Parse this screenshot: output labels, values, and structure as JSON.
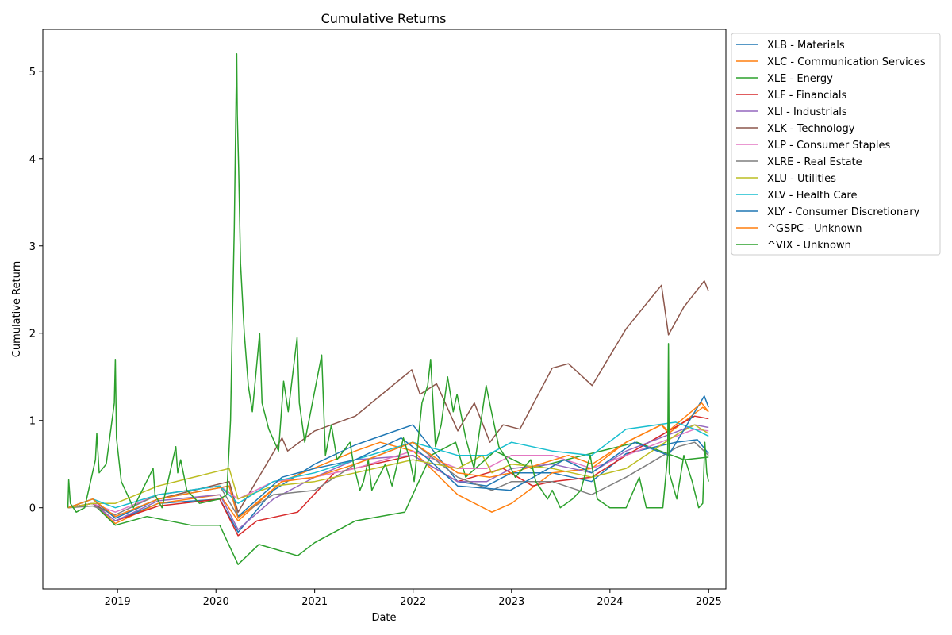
{
  "chart_data": {
    "type": "line",
    "title": "Cumulative Returns",
    "xlabel": "Date",
    "ylabel": "Cumulative Return",
    "xlim": [
      "2018-03-30",
      "2025-03-06"
    ],
    "ylim": [
      -0.93,
      5.48
    ],
    "xticks": [
      {
        "value": "2019-01-01",
        "label": "2019"
      },
      {
        "value": "2020-01-01",
        "label": "2020"
      },
      {
        "value": "2021-01-01",
        "label": "2021"
      },
      {
        "value": "2022-01-01",
        "label": "2022"
      },
      {
        "value": "2023-01-01",
        "label": "2023"
      },
      {
        "value": "2024-01-01",
        "label": "2024"
      },
      {
        "value": "2025-01-01",
        "label": "2025"
      }
    ],
    "yticks": [
      0,
      1,
      2,
      3,
      4,
      5
    ],
    "grid": false,
    "legend_position": "outside-upper-right",
    "series": [
      {
        "name": "XLB - Materials",
        "color": "#1f77b4",
        "x": [
          "2018-07-01",
          "2018-10-01",
          "2018-12-24",
          "2019-06-01",
          "2020-01-15",
          "2020-03-23",
          "2020-08-01",
          "2021-01-01",
          "2021-06-01",
          "2021-12-31",
          "2022-06-15",
          "2022-10-01",
          "2023-01-01",
          "2023-06-01",
          "2023-10-25",
          "2024-03-01",
          "2024-09-01",
          "2024-11-20",
          "2025-01-01"
        ],
        "y": [
          0.0,
          0.05,
          -0.15,
          0.05,
          0.1,
          -0.28,
          0.2,
          0.5,
          0.72,
          0.95,
          0.3,
          0.25,
          0.4,
          0.4,
          0.3,
          0.62,
          0.75,
          0.78,
          0.62
        ]
      },
      {
        "name": "XLC - Communication Services",
        "color": "#ff7f0e",
        "x": [
          "2018-07-01",
          "2018-10-01",
          "2018-12-24",
          "2019-06-01",
          "2020-01-15",
          "2020-03-23",
          "2020-09-01",
          "2021-06-01",
          "2021-09-01",
          "2022-01-01",
          "2022-06-15",
          "2022-10-20",
          "2023-01-01",
          "2023-06-01",
          "2023-10-25",
          "2024-03-01",
          "2024-07-10",
          "2024-08-05",
          "2024-12-10",
          "2025-01-01"
        ],
        "y": [
          0.0,
          0.05,
          -0.18,
          0.05,
          0.15,
          -0.15,
          0.3,
          0.65,
          0.75,
          0.65,
          0.15,
          -0.05,
          0.05,
          0.4,
          0.45,
          0.75,
          0.95,
          0.85,
          1.15,
          1.1
        ]
      },
      {
        "name": "XLE - Energy",
        "color": "#2ca02c",
        "x": [
          "2018-07-01",
          "2018-10-01",
          "2018-12-24",
          "2019-04-20",
          "2019-10-01",
          "2020-01-15",
          "2020-03-23",
          "2020-06-08",
          "2020-10-30",
          "2021-01-01",
          "2021-06-01",
          "2021-12-01",
          "2022-03-08",
          "2022-06-08",
          "2022-07-15",
          "2022-11-01",
          "2023-03-15",
          "2023-09-25",
          "2024-04-10",
          "2024-10-01",
          "2025-01-01"
        ],
        "y": [
          0.0,
          0.05,
          -0.2,
          -0.1,
          -0.2,
          -0.2,
          -0.65,
          -0.42,
          -0.55,
          -0.4,
          -0.15,
          -0.05,
          0.6,
          0.75,
          0.35,
          0.65,
          0.45,
          0.6,
          0.75,
          0.55,
          0.58
        ]
      },
      {
        "name": "XLF - Financials",
        "color": "#d62728",
        "x": [
          "2018-07-01",
          "2018-10-01",
          "2018-12-24",
          "2019-06-01",
          "2020-01-15",
          "2020-03-23",
          "2020-06-01",
          "2020-10-30",
          "2021-03-15",
          "2021-12-31",
          "2022-06-15",
          "2022-12-01",
          "2023-03-20",
          "2023-06-01",
          "2023-10-25",
          "2024-03-01",
          "2024-11-10",
          "2025-01-01"
        ],
        "y": [
          0.0,
          0.05,
          -0.15,
          0.02,
          0.1,
          -0.32,
          -0.15,
          -0.05,
          0.4,
          0.6,
          0.3,
          0.45,
          0.25,
          0.3,
          0.35,
          0.6,
          1.05,
          1.02
        ]
      },
      {
        "name": "XLI - Industrials",
        "color": "#9467bd",
        "x": [
          "2018-07-01",
          "2018-10-01",
          "2018-12-24",
          "2019-06-01",
          "2020-01-15",
          "2020-03-23",
          "2020-08-01",
          "2021-01-01",
          "2021-06-01",
          "2021-12-31",
          "2022-06-15",
          "2022-10-01",
          "2023-01-01",
          "2023-06-01",
          "2023-10-25",
          "2024-03-01",
          "2024-11-10",
          "2025-01-01"
        ],
        "y": [
          0.0,
          0.05,
          -0.15,
          0.08,
          0.15,
          -0.25,
          0.1,
          0.35,
          0.55,
          0.6,
          0.3,
          0.3,
          0.45,
          0.5,
          0.4,
          0.65,
          0.95,
          0.92
        ]
      },
      {
        "name": "XLK - Technology",
        "color": "#8c564b",
        "x": [
          "2018-07-01",
          "2018-10-01",
          "2018-12-24",
          "2019-06-01",
          "2020-02-19",
          "2020-03-23",
          "2020-09-02",
          "2020-09-23",
          "2021-01-01",
          "2021-06-01",
          "2021-12-27",
          "2022-01-27",
          "2022-03-29",
          "2022-06-16",
          "2022-08-16",
          "2022-10-13",
          "2022-12-01",
          "2023-02-01",
          "2023-06-01",
          "2023-07-31",
          "2023-10-27",
          "2024-03-01",
          "2024-07-10",
          "2024-08-05",
          "2024-10-01",
          "2024-12-16",
          "2025-01-01"
        ],
        "y": [
          0.0,
          0.05,
          -0.1,
          0.1,
          0.3,
          -0.05,
          0.8,
          0.65,
          0.88,
          1.05,
          1.58,
          1.3,
          1.42,
          0.88,
          1.2,
          0.75,
          0.95,
          0.9,
          1.6,
          1.65,
          1.4,
          2.05,
          2.55,
          1.98,
          2.3,
          2.6,
          2.48
        ]
      },
      {
        "name": "XLP - Consumer Staples",
        "color": "#e377c2",
        "x": [
          "2018-07-01",
          "2018-10-01",
          "2018-12-24",
          "2019-06-01",
          "2020-01-15",
          "2020-03-23",
          "2020-08-01",
          "2021-01-01",
          "2021-06-01",
          "2021-12-31",
          "2022-06-15",
          "2022-10-01",
          "2023-01-01",
          "2023-06-01",
          "2023-10-25",
          "2024-03-01",
          "2024-11-10",
          "2025-01-01"
        ],
        "y": [
          0.0,
          0.05,
          -0.05,
          0.15,
          0.25,
          0.1,
          0.3,
          0.35,
          0.45,
          0.65,
          0.45,
          0.45,
          0.6,
          0.6,
          0.45,
          0.6,
          0.9,
          0.88
        ]
      },
      {
        "name": "XLRE - Real Estate",
        "color": "#7f7f7f",
        "x": [
          "2018-07-01",
          "2018-10-01",
          "2018-12-24",
          "2019-06-01",
          "2020-01-15",
          "2020-03-23",
          "2020-08-01",
          "2021-01-01",
          "2021-06-01",
          "2021-12-31",
          "2022-06-15",
          "2022-10-20",
          "2023-01-01",
          "2023-06-01",
          "2023-10-25",
          "2024-03-01",
          "2024-09-10",
          "2024-11-10",
          "2025-01-01"
        ],
        "y": [
          0.0,
          0.02,
          -0.08,
          0.15,
          0.25,
          -0.1,
          0.15,
          0.2,
          0.5,
          0.75,
          0.35,
          0.2,
          0.3,
          0.3,
          0.15,
          0.35,
          0.7,
          0.75,
          0.6
        ]
      },
      {
        "name": "XLU - Utilities",
        "color": "#bcbd22",
        "x": [
          "2018-07-01",
          "2018-10-01",
          "2018-12-24",
          "2019-06-01",
          "2020-02-19",
          "2020-03-23",
          "2020-08-01",
          "2021-01-01",
          "2021-06-01",
          "2021-12-31",
          "2022-06-15",
          "2022-09-15",
          "2022-10-20",
          "2023-01-01",
          "2023-06-01",
          "2023-10-25",
          "2024-03-01",
          "2024-09-10",
          "2024-11-10",
          "2025-01-01"
        ],
        "y": [
          0.0,
          0.05,
          0.05,
          0.25,
          0.45,
          0.1,
          0.25,
          0.3,
          0.4,
          0.55,
          0.45,
          0.6,
          0.4,
          0.5,
          0.45,
          0.35,
          0.45,
          0.85,
          0.95,
          0.85
        ]
      },
      {
        "name": "XLV - Health Care",
        "color": "#17becf",
        "x": [
          "2018-07-01",
          "2018-10-01",
          "2018-12-24",
          "2019-06-01",
          "2020-01-15",
          "2020-03-23",
          "2020-08-01",
          "2021-01-01",
          "2021-06-01",
          "2021-12-31",
          "2022-06-15",
          "2022-10-01",
          "2023-01-01",
          "2023-06-01",
          "2023-10-25",
          "2024-03-01",
          "2024-09-01",
          "2024-11-10",
          "2025-01-01"
        ],
        "y": [
          0.0,
          0.1,
          0.0,
          0.15,
          0.25,
          0.05,
          0.3,
          0.4,
          0.55,
          0.75,
          0.6,
          0.6,
          0.75,
          0.65,
          0.6,
          0.9,
          0.98,
          0.9,
          0.82
        ]
      },
      {
        "name": "XLY - Consumer Discretionary",
        "color": "#1f77b4",
        "x": [
          "2018-07-01",
          "2018-10-01",
          "2018-12-24",
          "2019-06-01",
          "2020-02-19",
          "2020-03-23",
          "2020-09-02",
          "2021-01-01",
          "2021-06-01",
          "2021-11-18",
          "2022-03-01",
          "2022-06-15",
          "2022-12-28",
          "2023-07-15",
          "2023-10-25",
          "2024-04-01",
          "2024-08-05",
          "2024-12-16",
          "2025-01-01"
        ],
        "y": [
          0.0,
          0.1,
          -0.12,
          0.1,
          0.25,
          -0.1,
          0.35,
          0.45,
          0.55,
          0.8,
          0.55,
          0.25,
          0.2,
          0.55,
          0.4,
          0.75,
          0.6,
          1.28,
          1.15
        ]
      },
      {
        "name": "^GSPC - Unknown",
        "color": "#ff7f0e",
        "x": [
          "2018-07-01",
          "2018-10-01",
          "2018-12-24",
          "2019-06-01",
          "2020-02-19",
          "2020-03-23",
          "2020-09-02",
          "2021-01-01",
          "2021-06-01",
          "2021-12-31",
          "2022-06-15",
          "2022-10-13",
          "2023-01-01",
          "2023-07-31",
          "2023-10-27",
          "2024-03-01",
          "2024-07-10",
          "2024-08-05",
          "2024-12-06",
          "2025-01-01"
        ],
        "y": [
          0.0,
          0.1,
          -0.1,
          0.1,
          0.25,
          -0.12,
          0.3,
          0.35,
          0.5,
          0.75,
          0.4,
          0.35,
          0.4,
          0.6,
          0.5,
          0.75,
          0.95,
          0.88,
          1.2,
          1.1
        ]
      },
      {
        "name": "^VIX - Unknown",
        "color": "#2ca02c",
        "x": [
          "2018-07-01",
          "2018-07-04",
          "2018-07-10",
          "2018-08-01",
          "2018-09-01",
          "2018-10-11",
          "2018-10-16",
          "2018-10-25",
          "2018-11-20",
          "2018-12-20",
          "2018-12-24",
          "2018-12-28",
          "2019-01-15",
          "2019-03-01",
          "2019-05-13",
          "2019-05-20",
          "2019-06-15",
          "2019-08-05",
          "2019-08-12",
          "2019-08-23",
          "2019-09-15",
          "2019-11-01",
          "2020-01-15",
          "2020-02-10",
          "2020-02-24",
          "2020-03-01",
          "2020-03-09",
          "2020-03-16",
          "2020-03-18",
          "2020-03-20",
          "2020-03-25",
          "2020-04-01",
          "2020-04-15",
          "2020-04-30",
          "2020-05-15",
          "2020-06-11",
          "2020-06-20",
          "2020-07-15",
          "2020-08-20",
          "2020-09-08",
          "2020-09-25",
          "2020-10-28",
          "2020-11-05",
          "2020-11-25",
          "2021-01-27",
          "2021-02-10",
          "2021-03-04",
          "2021-03-25",
          "2021-05-12",
          "2021-05-25",
          "2021-06-18",
          "2021-07-01",
          "2021-07-19",
          "2021-08-01",
          "2021-09-20",
          "2021-10-15",
          "2021-11-26",
          "2021-12-20",
          "2022-01-05",
          "2022-01-24",
          "2022-02-03",
          "2022-02-24",
          "2022-03-07",
          "2022-03-25",
          "2022-04-15",
          "2022-05-09",
          "2022-05-30",
          "2022-06-13",
          "2022-07-15",
          "2022-08-15",
          "2022-09-29",
          "2022-10-12",
          "2022-11-15",
          "2022-12-15",
          "2023-01-15",
          "2023-03-13",
          "2023-04-01",
          "2023-05-15",
          "2023-06-01",
          "2023-07-01",
          "2023-08-15",
          "2023-09-15",
          "2023-10-20",
          "2023-11-15",
          "2024-01-01",
          "2024-03-01",
          "2024-04-19",
          "2024-05-15",
          "2024-07-15",
          "2024-08-02",
          "2024-08-05",
          "2024-08-08",
          "2024-09-05",
          "2024-10-01",
          "2024-11-01",
          "2024-11-25",
          "2024-12-10",
          "2024-12-18",
          "2024-12-25",
          "2025-01-01"
        ],
        "y": [
          0.0,
          0.32,
          0.05,
          -0.05,
          0.0,
          0.55,
          0.85,
          0.4,
          0.5,
          1.2,
          1.7,
          0.8,
          0.3,
          0.0,
          0.45,
          0.15,
          0.0,
          0.7,
          0.4,
          0.55,
          0.2,
          0.05,
          0.1,
          0.15,
          1.0,
          2.0,
          3.2,
          4.8,
          5.2,
          4.5,
          3.9,
          2.8,
          2.0,
          1.4,
          1.1,
          2.0,
          1.2,
          0.9,
          0.65,
          1.45,
          1.1,
          1.95,
          1.2,
          0.75,
          1.75,
          0.6,
          0.95,
          0.55,
          0.75,
          0.5,
          0.2,
          0.3,
          0.55,
          0.2,
          0.5,
          0.25,
          0.8,
          0.55,
          0.3,
          0.9,
          1.2,
          1.4,
          1.7,
          0.7,
          0.95,
          1.5,
          1.1,
          1.3,
          0.8,
          0.45,
          1.4,
          1.2,
          0.7,
          0.55,
          0.35,
          0.55,
          0.3,
          0.1,
          0.2,
          0.0,
          0.1,
          0.2,
          0.6,
          0.1,
          0.0,
          0.0,
          0.35,
          0.0,
          0.0,
          0.6,
          1.88,
          0.4,
          0.1,
          0.6,
          0.3,
          0.0,
          0.05,
          0.75,
          0.4,
          0.3
        ]
      }
    ]
  }
}
